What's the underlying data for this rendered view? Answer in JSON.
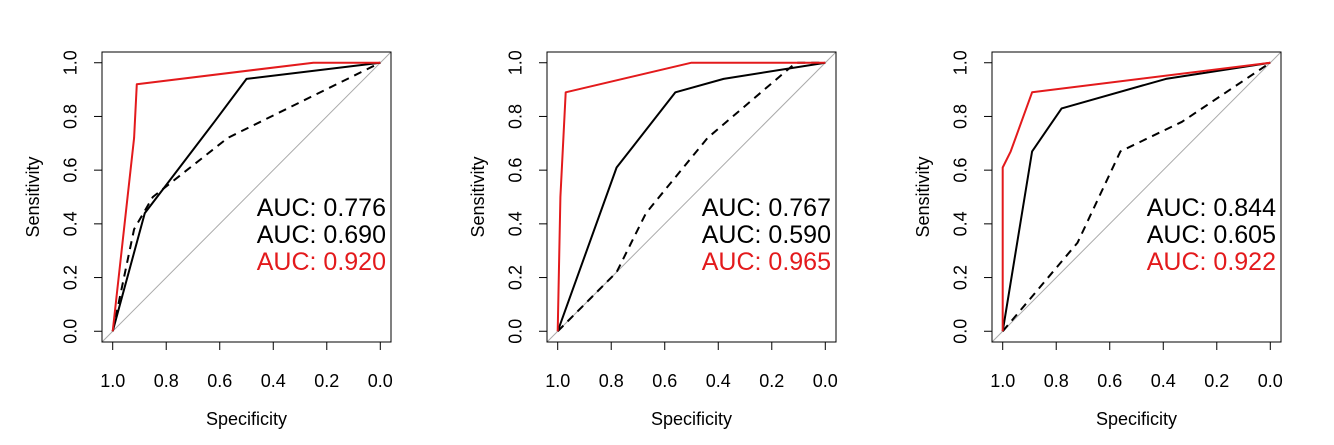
{
  "colors": {
    "black": "#000000",
    "red": "#e31a1c",
    "diagonal": "#aaaaaa",
    "background": "#ffffff"
  },
  "chart_data": [
    {
      "type": "line",
      "xlabel": "Specificity",
      "ylabel": "Sensitivity",
      "xlim": [
        1.0,
        0.0
      ],
      "ylim": [
        0.0,
        1.0
      ],
      "x_ticks": [
        "1.0",
        "0.8",
        "0.6",
        "0.4",
        "0.2",
        "0.0"
      ],
      "y_ticks": [
        "0.0",
        "0.2",
        "0.4",
        "0.6",
        "0.8",
        "1.0"
      ],
      "grid": false,
      "reference_line": "diagonal",
      "series": [
        {
          "color": "black",
          "style": "solid",
          "auc_label": "AUC: 0.776",
          "specificity": [
            1.0,
            0.88,
            0.62,
            0.5,
            0.0
          ],
          "sensitivity": [
            0.0,
            0.44,
            0.78,
            0.94,
            1.0
          ]
        },
        {
          "color": "black",
          "style": "dashed",
          "auc_label": "AUC: 0.690",
          "specificity": [
            1.0,
            0.92,
            0.85,
            0.57,
            0.0
          ],
          "sensitivity": [
            0.0,
            0.38,
            0.5,
            0.72,
            1.0
          ]
        },
        {
          "color": "red",
          "style": "solid",
          "auc_label": "AUC: 0.920",
          "specificity": [
            1.0,
            0.92,
            0.92,
            0.91,
            0.25,
            0.0
          ],
          "sensitivity": [
            0.0,
            0.72,
            0.72,
            0.92,
            1.0,
            1.0
          ]
        }
      ]
    },
    {
      "type": "line",
      "xlabel": "Specificity",
      "ylabel": "Sensitivity",
      "xlim": [
        1.0,
        0.0
      ],
      "ylim": [
        0.0,
        1.0
      ],
      "x_ticks": [
        "1.0",
        "0.8",
        "0.6",
        "0.4",
        "0.2",
        "0.0"
      ],
      "y_ticks": [
        "0.0",
        "0.2",
        "0.4",
        "0.6",
        "0.8",
        "1.0"
      ],
      "grid": false,
      "reference_line": "diagonal",
      "series": [
        {
          "color": "black",
          "style": "solid",
          "auc_label": "AUC: 0.767",
          "specificity": [
            1.0,
            0.78,
            0.56,
            0.38,
            0.0
          ],
          "sensitivity": [
            0.0,
            0.61,
            0.89,
            0.94,
            1.0
          ]
        },
        {
          "color": "black",
          "style": "dashed",
          "auc_label": "AUC: 0.590",
          "specificity": [
            1.0,
            0.78,
            0.67,
            0.44,
            0.11,
            0.0
          ],
          "sensitivity": [
            0.0,
            0.22,
            0.44,
            0.72,
            1.0,
            1.0
          ]
        },
        {
          "color": "red",
          "style": "solid",
          "auc_label": "AUC: 0.965",
          "specificity": [
            1.0,
            0.99,
            0.97,
            0.5,
            0.0
          ],
          "sensitivity": [
            0.0,
            0.5,
            0.89,
            1.0,
            1.0
          ]
        }
      ]
    },
    {
      "type": "line",
      "xlabel": "Specificity",
      "ylabel": "Sensitivity",
      "xlim": [
        1.0,
        0.0
      ],
      "ylim": [
        0.0,
        1.0
      ],
      "x_ticks": [
        "1.0",
        "0.8",
        "0.6",
        "0.4",
        "0.2",
        "0.0"
      ],
      "y_ticks": [
        "0.0",
        "0.2",
        "0.4",
        "0.6",
        "0.8",
        "1.0"
      ],
      "grid": false,
      "reference_line": "diagonal",
      "series": [
        {
          "color": "black",
          "style": "solid",
          "auc_label": "AUC: 0.844",
          "specificity": [
            1.0,
            0.89,
            0.78,
            0.39,
            0.0
          ],
          "sensitivity": [
            0.0,
            0.67,
            0.83,
            0.94,
            1.0
          ]
        },
        {
          "color": "black",
          "style": "dashed",
          "auc_label": "AUC: 0.605",
          "specificity": [
            1.0,
            0.72,
            0.56,
            0.33,
            0.0
          ],
          "sensitivity": [
            0.0,
            0.33,
            0.67,
            0.78,
            1.0
          ]
        },
        {
          "color": "red",
          "style": "solid",
          "auc_label": "AUC: 0.922",
          "specificity": [
            1.0,
            1.0,
            0.97,
            0.89,
            0.0
          ],
          "sensitivity": [
            0.0,
            0.61,
            0.67,
            0.89,
            1.0
          ]
        }
      ]
    }
  ]
}
